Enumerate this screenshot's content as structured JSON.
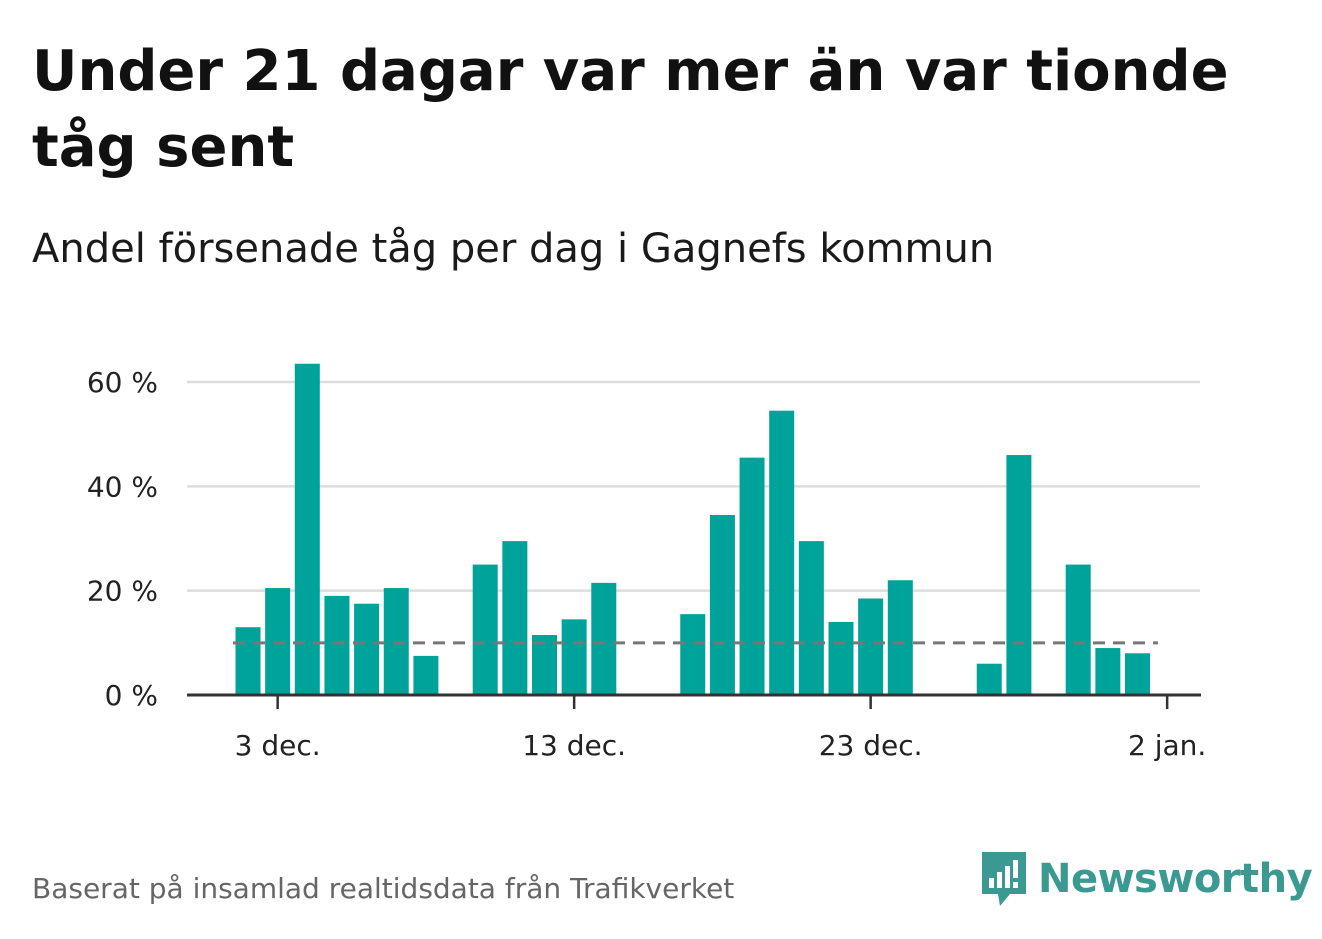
{
  "title": "Under 21 dagar var mer än var tionde tåg sent",
  "subtitle": "Andel försenade tåg per dag i Gagnefs kommun",
  "source": "Baserat på insamlad realtidsdata från Trafikverket",
  "brand": {
    "name": "Newsworthy",
    "icon": "bar-chart-logo-icon",
    "color": "#3a9a92"
  },
  "colors": {
    "bar": "#00a39a",
    "grid": "#dddddd",
    "axis": "#333333",
    "reference": "#777777"
  },
  "chart_data": {
    "type": "bar",
    "x": [
      "2024-12-02",
      "2024-12-03",
      "2024-12-04",
      "2024-12-05",
      "2024-12-06",
      "2024-12-07",
      "2024-12-08",
      "2024-12-09",
      "2024-12-10",
      "2024-12-11",
      "2024-12-12",
      "2024-12-13",
      "2024-12-14",
      "2024-12-15",
      "2024-12-16",
      "2024-12-17",
      "2024-12-18",
      "2024-12-19",
      "2024-12-20",
      "2024-12-21",
      "2024-12-22",
      "2024-12-23",
      "2024-12-24",
      "2024-12-25",
      "2024-12-26",
      "2024-12-27",
      "2024-12-28",
      "2024-12-29",
      "2024-12-30",
      "2024-12-31",
      "2025-01-01"
    ],
    "values": [
      13,
      20.5,
      63.5,
      19,
      17.5,
      20.5,
      7.5,
      null,
      25,
      29.5,
      11.5,
      14.5,
      21.5,
      null,
      null,
      15.5,
      34.5,
      45.5,
      54.5,
      29.5,
      14,
      18.5,
      22,
      null,
      null,
      6,
      46,
      null,
      25,
      9,
      8
    ],
    "reference_line": 10,
    "y_ticks": [
      0,
      20,
      40,
      60
    ],
    "y_tick_labels": [
      "0 %",
      "20 %",
      "40 %",
      "60 %"
    ],
    "x_ticks": [
      "2024-12-03",
      "2024-12-13",
      "2024-12-23",
      "2025-01-02"
    ],
    "x_tick_labels": [
      "3 dec.",
      "13 dec.",
      "23 dec.",
      "2 jan."
    ],
    "ylim": [
      0,
      64
    ],
    "xlabel": "",
    "ylabel": "",
    "grid": true
  }
}
